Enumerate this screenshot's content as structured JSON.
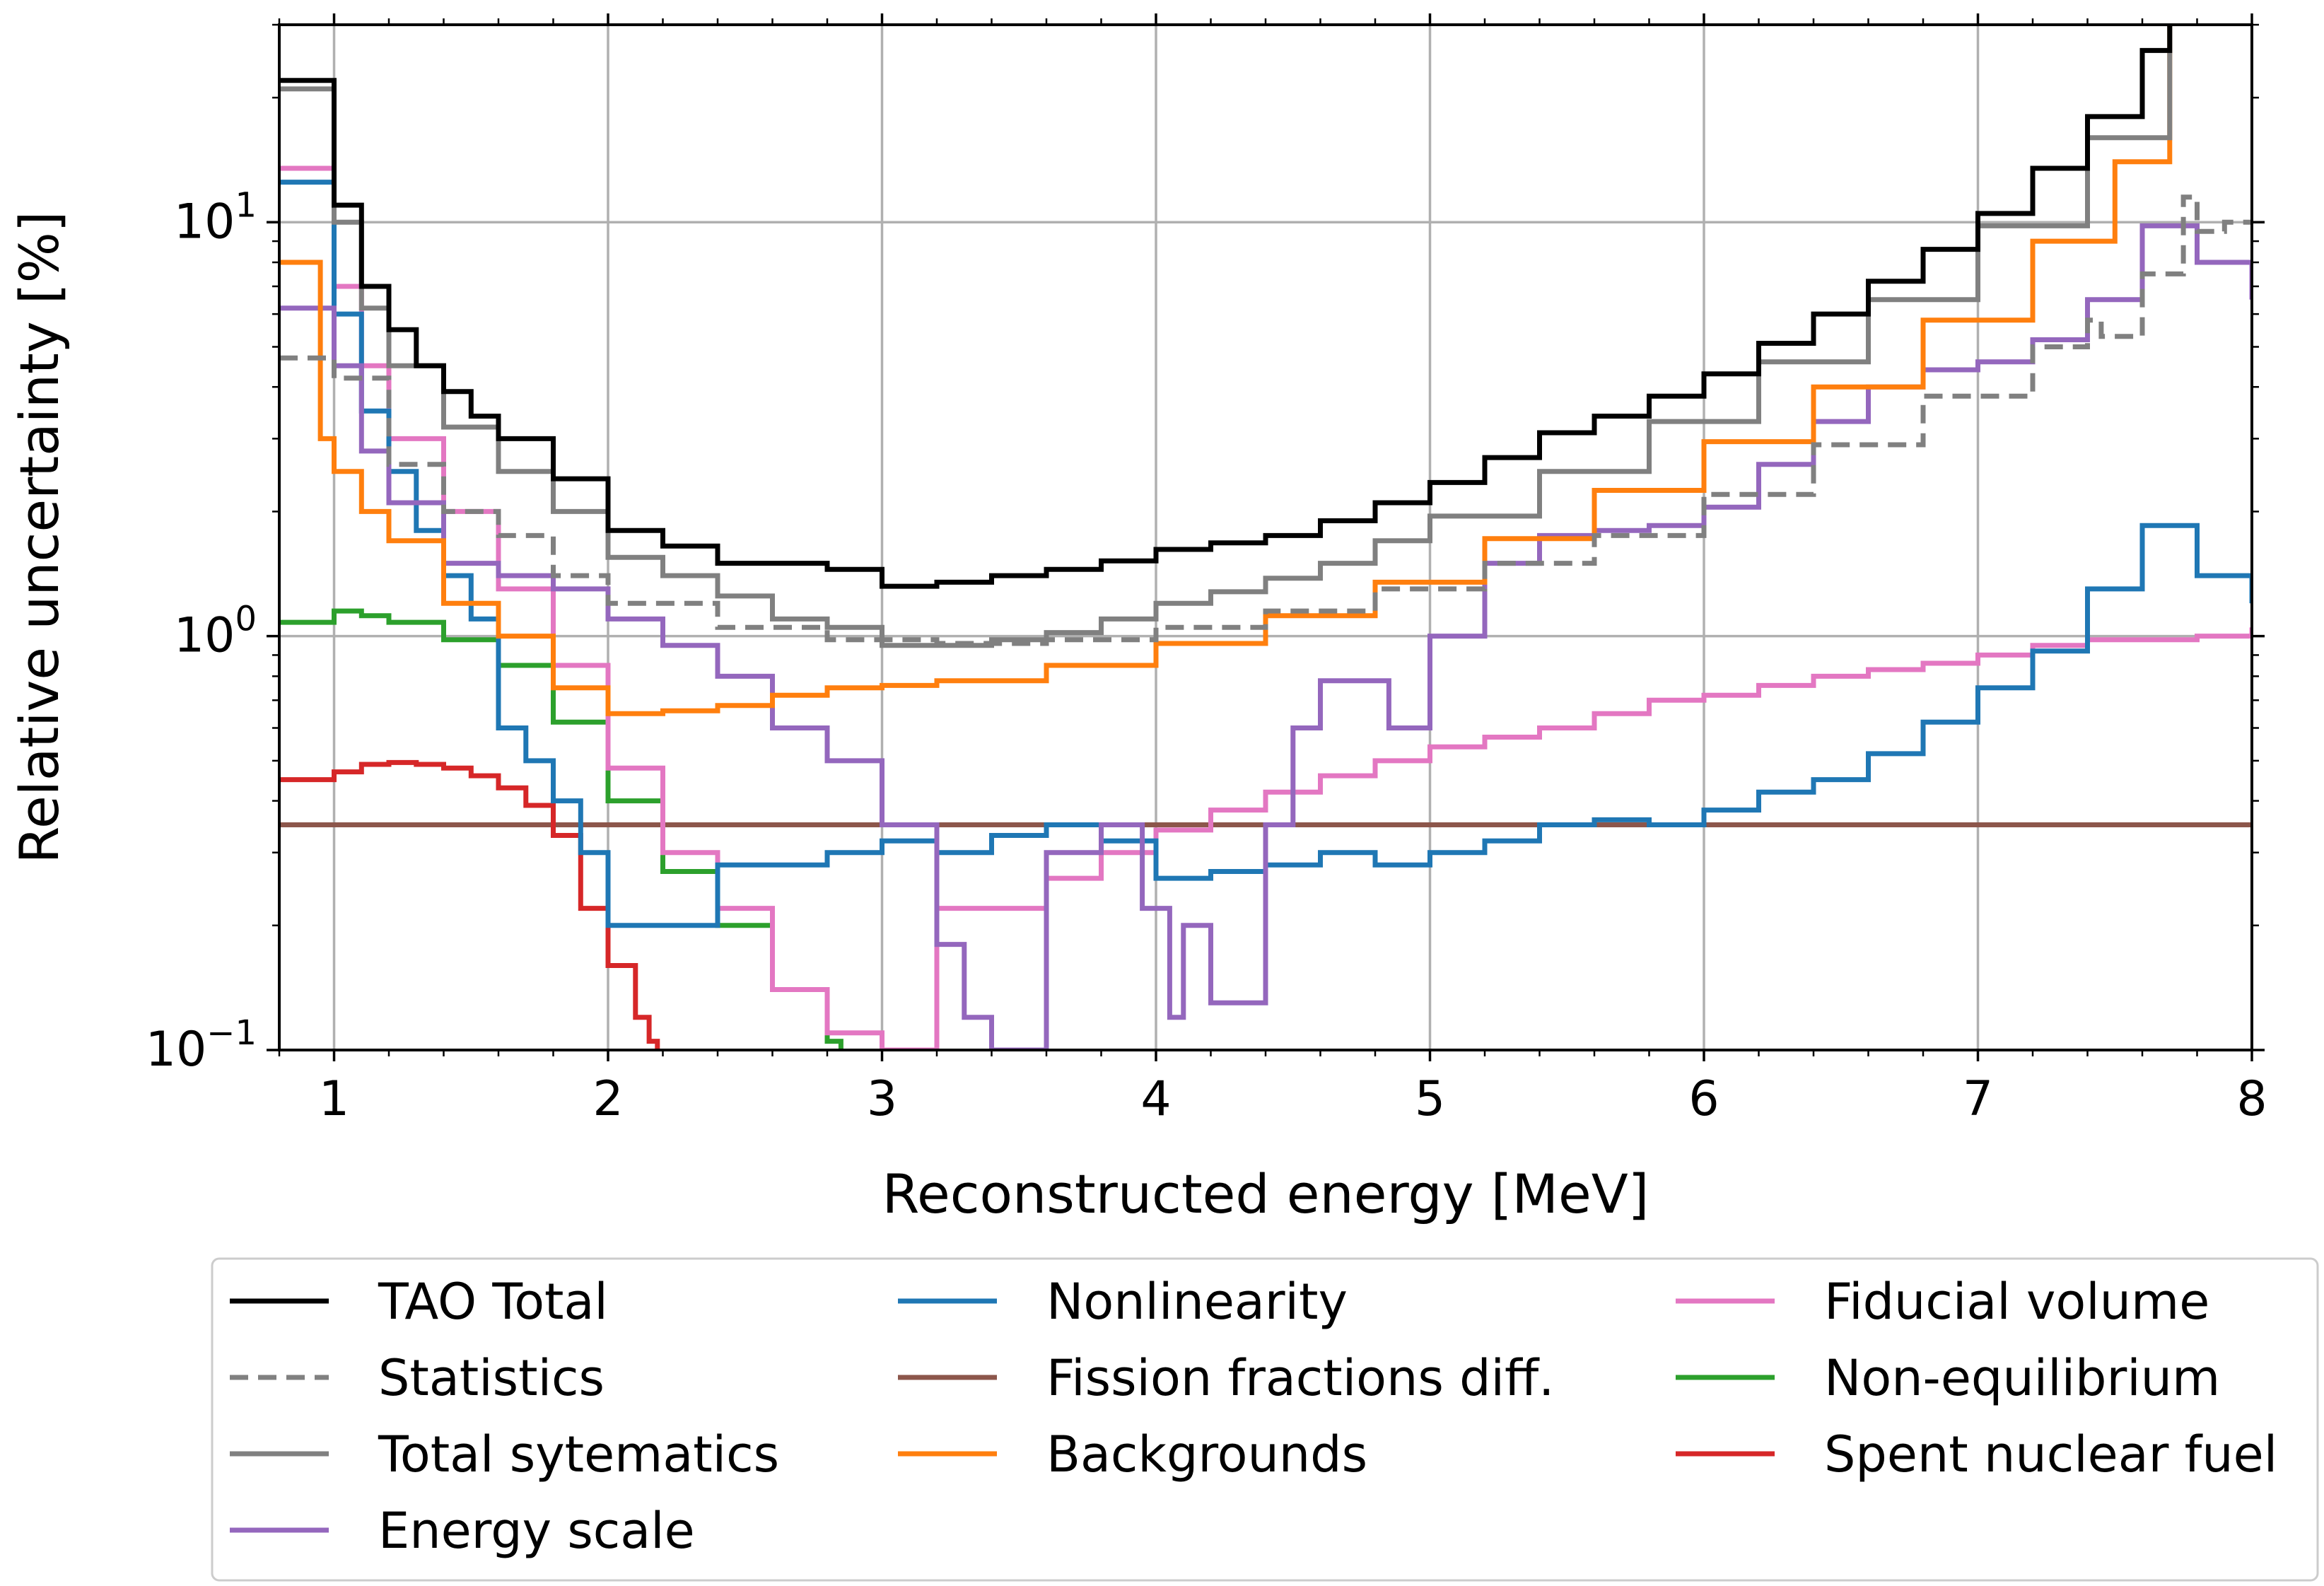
{
  "chart_data": {
    "type": "line",
    "xlabel": "Reconstructed energy [MeV]",
    "ylabel": "Relative uncertainty [%]",
    "xlim": [
      0.8,
      8.0
    ],
    "ylim": [
      0.1,
      30
    ],
    "yscale": "log",
    "grid": true,
    "legend_position": "bottom",
    "xticks": [
      "1",
      "2",
      "3",
      "4",
      "5",
      "6",
      "7",
      "8"
    ],
    "yticks": [
      {
        "value": 10,
        "base": "10",
        "exp": "1"
      },
      {
        "value": 1,
        "base": "10",
        "exp": "0"
      },
      {
        "value": 0.1,
        "base": "10",
        "exp": "−1"
      }
    ],
    "series": [
      {
        "name": "TAO Total",
        "color": "#000000",
        "dash": false,
        "x": [
          0.8,
          0.9,
          1.0,
          1.1,
          1.2,
          1.3,
          1.4,
          1.5,
          1.6,
          1.8,
          2.0,
          2.2,
          2.4,
          2.6,
          2.8,
          3.0,
          3.2,
          3.4,
          3.6,
          3.8,
          4.0,
          4.2,
          4.4,
          4.6,
          4.8,
          5.0,
          5.2,
          5.4,
          5.6,
          5.8,
          6.0,
          6.2,
          6.4,
          6.6,
          6.8,
          7.0,
          7.2,
          7.4,
          7.6,
          7.7
        ],
        "y": [
          22,
          22,
          11,
          7,
          5.5,
          4.5,
          3.9,
          3.4,
          3.0,
          2.4,
          1.8,
          1.65,
          1.5,
          1.5,
          1.45,
          1.32,
          1.35,
          1.4,
          1.45,
          1.52,
          1.62,
          1.68,
          1.75,
          1.9,
          2.1,
          2.35,
          2.7,
          3.1,
          3.4,
          3.8,
          4.3,
          5.1,
          6.0,
          7.2,
          8.6,
          10.5,
          13.5,
          18,
          26,
          30
        ]
      },
      {
        "name": "Statistics",
        "color": "#808080",
        "dash": true,
        "x": [
          0.8,
          0.9,
          1.0,
          1.2,
          1.4,
          1.6,
          1.8,
          2.0,
          2.4,
          2.8,
          3.2,
          3.6,
          4.0,
          4.4,
          4.8,
          5.2,
          5.6,
          6.0,
          6.4,
          6.8,
          7.2,
          7.4,
          7.45,
          7.6,
          7.75,
          7.8,
          7.9,
          8.0
        ],
        "y": [
          4.7,
          4.7,
          4.2,
          2.6,
          2.0,
          1.75,
          1.4,
          1.2,
          1.05,
          0.98,
          0.96,
          0.98,
          1.05,
          1.15,
          1.3,
          1.5,
          1.75,
          2.2,
          2.9,
          3.8,
          5.0,
          5.8,
          5.3,
          7.5,
          11.5,
          9.5,
          10,
          10
        ]
      },
      {
        "name": "Total sytematics",
        "color": "#808080",
        "dash": false,
        "x": [
          0.8,
          0.9,
          1.0,
          1.1,
          1.2,
          1.4,
          1.6,
          1.8,
          2.0,
          2.2,
          2.4,
          2.6,
          2.8,
          3.0,
          3.2,
          3.4,
          3.6,
          3.8,
          4.0,
          4.2,
          4.4,
          4.6,
          4.8,
          5.0,
          5.4,
          5.8,
          6.2,
          6.6,
          7.0,
          7.4,
          7.7
        ],
        "y": [
          21,
          21,
          10,
          6.2,
          4.5,
          3.2,
          2.5,
          2.0,
          1.55,
          1.4,
          1.25,
          1.1,
          1.05,
          0.95,
          0.95,
          0.98,
          1.02,
          1.1,
          1.2,
          1.28,
          1.38,
          1.5,
          1.7,
          1.95,
          2.5,
          3.3,
          4.6,
          6.5,
          9.8,
          16,
          30
        ]
      },
      {
        "name": "Energy scale",
        "color": "#9467bd",
        "dash": false,
        "x": [
          0.8,
          0.9,
          1.0,
          1.1,
          1.2,
          1.4,
          1.6,
          1.8,
          2.0,
          2.2,
          2.4,
          2.6,
          2.8,
          3.0,
          3.2,
          3.3,
          3.4,
          3.6,
          3.8,
          3.95,
          4.05,
          4.1,
          4.2,
          4.3,
          4.4,
          4.5,
          4.6,
          4.75,
          4.85,
          5.0,
          5.2,
          5.4,
          5.6,
          5.8,
          6.0,
          6.2,
          6.4,
          6.6,
          6.8,
          7.0,
          7.2,
          7.4,
          7.6,
          7.8,
          8.0
        ],
        "y": [
          6.2,
          6.2,
          4.5,
          2.8,
          2.1,
          1.5,
          1.4,
          1.3,
          1.1,
          0.95,
          0.8,
          0.6,
          0.5,
          0.35,
          0.18,
          0.12,
          0.1,
          0.3,
          0.35,
          0.22,
          0.12,
          0.2,
          0.13,
          0.13,
          0.35,
          0.6,
          0.78,
          0.78,
          0.6,
          1.0,
          1.5,
          1.75,
          1.8,
          1.85,
          2.05,
          2.6,
          3.3,
          4.0,
          4.4,
          4.6,
          5.2,
          6.5,
          9.8,
          8.0,
          6.5
        ]
      },
      {
        "name": "Nonlinearity",
        "color": "#1f77b4",
        "dash": false,
        "x": [
          0.8,
          0.9,
          1.0,
          1.1,
          1.2,
          1.3,
          1.4,
          1.5,
          1.6,
          1.7,
          1.8,
          1.9,
          2.0,
          2.2,
          2.4,
          2.6,
          2.8,
          3.0,
          3.2,
          3.4,
          3.6,
          3.8,
          4.0,
          4.2,
          4.4,
          4.6,
          4.8,
          5.0,
          5.2,
          5.4,
          5.6,
          5.8,
          6.0,
          6.2,
          6.4,
          6.6,
          6.8,
          7.0,
          7.2,
          7.4,
          7.6,
          7.8,
          8.0
        ],
        "y": [
          12.5,
          12.5,
          6.0,
          3.5,
          2.5,
          1.8,
          1.4,
          1.1,
          0.6,
          0.5,
          0.4,
          0.3,
          0.2,
          0.2,
          0.28,
          0.28,
          0.3,
          0.32,
          0.3,
          0.33,
          0.35,
          0.32,
          0.26,
          0.27,
          0.28,
          0.3,
          0.28,
          0.3,
          0.32,
          0.35,
          0.36,
          0.35,
          0.38,
          0.42,
          0.45,
          0.52,
          0.62,
          0.75,
          0.92,
          1.3,
          1.85,
          1.4,
          1.2
        ]
      },
      {
        "name": "Fission fractions diff.",
        "color": "#8c564b",
        "dash": false,
        "x": [
          0.8,
          8.0
        ],
        "y": [
          0.35,
          0.35
        ]
      },
      {
        "name": "Backgrounds",
        "color": "#ff7f0e",
        "dash": false,
        "x": [
          0.8,
          0.9,
          0.95,
          1.0,
          1.1,
          1.2,
          1.4,
          1.6,
          1.8,
          2.0,
          2.2,
          2.4,
          2.6,
          2.8,
          3.0,
          3.2,
          3.6,
          4.0,
          4.4,
          4.8,
          5.2,
          5.6,
          6.0,
          6.4,
          6.8,
          7.2,
          7.5,
          7.7
        ],
        "y": [
          8.0,
          8.0,
          3.0,
          2.5,
          2.0,
          1.7,
          1.2,
          1.0,
          0.75,
          0.65,
          0.66,
          0.68,
          0.72,
          0.75,
          0.76,
          0.78,
          0.85,
          0.96,
          1.12,
          1.35,
          1.72,
          2.25,
          2.95,
          4.0,
          5.8,
          9.0,
          14,
          30
        ]
      },
      {
        "name": "Fiducial volume",
        "color": "#e377c2",
        "dash": false,
        "x": [
          0.8,
          0.9,
          1.0,
          1.1,
          1.2,
          1.4,
          1.6,
          1.8,
          2.0,
          2.2,
          2.4,
          2.6,
          2.8,
          3.0,
          3.2,
          3.4,
          3.6,
          3.8,
          4.0,
          4.2,
          4.4,
          4.6,
          4.8,
          5.0,
          5.2,
          5.4,
          5.6,
          5.8,
          6.0,
          6.2,
          6.4,
          6.6,
          6.8,
          7.0,
          7.2,
          7.4,
          7.6,
          7.8,
          8.0
        ],
        "y": [
          13.5,
          13.5,
          7.0,
          4.5,
          3.0,
          2.0,
          1.3,
          0.85,
          0.48,
          0.3,
          0.22,
          0.14,
          0.11,
          0.1,
          0.22,
          0.22,
          0.26,
          0.3,
          0.34,
          0.38,
          0.42,
          0.46,
          0.5,
          0.54,
          0.57,
          0.6,
          0.65,
          0.7,
          0.72,
          0.76,
          0.8,
          0.83,
          0.86,
          0.9,
          0.95,
          0.98,
          0.98,
          1.0,
          1.05
        ]
      },
      {
        "name": "Non-equilibrium",
        "color": "#2ca02c",
        "dash": false,
        "x": [
          0.8,
          0.9,
          1.0,
          1.1,
          1.2,
          1.4,
          1.6,
          1.8,
          2.0,
          2.2,
          2.4,
          2.6,
          2.8,
          2.85
        ],
        "y": [
          1.08,
          1.08,
          1.15,
          1.12,
          1.08,
          0.98,
          0.85,
          0.62,
          0.4,
          0.27,
          0.2,
          0.14,
          0.105,
          0.1
        ]
      },
      {
        "name": "Spent nuclear fuel",
        "color": "#d62728",
        "dash": false,
        "x": [
          0.8,
          0.9,
          1.0,
          1.1,
          1.2,
          1.3,
          1.4,
          1.5,
          1.6,
          1.7,
          1.8,
          1.9,
          2.0,
          2.1,
          2.15,
          2.18
        ],
        "y": [
          0.45,
          0.45,
          0.47,
          0.49,
          0.495,
          0.49,
          0.48,
          0.46,
          0.43,
          0.39,
          0.33,
          0.22,
          0.16,
          0.12,
          0.105,
          0.1
        ]
      }
    ],
    "legend_layout": [
      [
        "TAO Total",
        "Statistics",
        "Total sytematics",
        "Energy scale"
      ],
      [
        "Nonlinearity",
        "Fission fractions diff.",
        "Backgrounds"
      ],
      [
        "Fiducial volume",
        "Non-equilibrium",
        "Spent nuclear fuel"
      ]
    ]
  }
}
